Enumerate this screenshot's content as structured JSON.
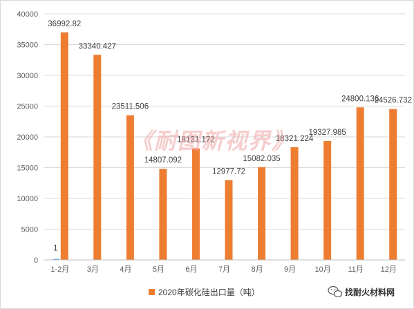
{
  "chart_data": {
    "type": "bar",
    "title": "",
    "xlabel": "",
    "ylabel": "",
    "categories": [
      "1-2月",
      "3月",
      "4月",
      "5月",
      "6月",
      "7月",
      "8月",
      "9月",
      "10月",
      "11月",
      "12月"
    ],
    "series": [
      {
        "name": "",
        "values": [
          1,
          null,
          null,
          null,
          null,
          null,
          null,
          null,
          null,
          null,
          null
        ],
        "color": "#5b9bd5"
      },
      {
        "name": "2020年碳化硅出口量（吨）",
        "values": [
          36992.82,
          33340.427,
          23511.506,
          14807.092,
          18131.172,
          12977.72,
          15082.035,
          18321.224,
          19327.985,
          24800.136,
          24526.732
        ],
        "color": "#ed7d31"
      }
    ],
    "data_labels": [
      "36992.82",
      "33340.427",
      "23511.506",
      "14807.092",
      "18131.172",
      "12977.72",
      "15082.035",
      "18321.224",
      "19327.985",
      "24800.136",
      "24526.732"
    ],
    "small_series_label": "1",
    "y_ticks": [
      "0",
      "5000",
      "10000",
      "15000",
      "20000",
      "25000",
      "30000",
      "35000",
      "40000"
    ],
    "ylim": [
      0,
      40000
    ],
    "grid": true,
    "legend_position": "bottom"
  },
  "watermark": {
    "text": "《耐图新视界》",
    "color": "#f0a5a5"
  },
  "brand": {
    "text": "找耐火材料网",
    "icon": "wechat-icon"
  }
}
